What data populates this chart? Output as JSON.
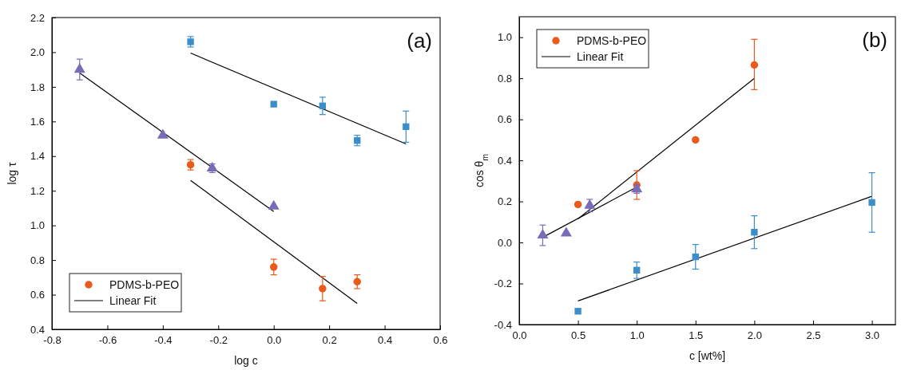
{
  "chart_data": [
    {
      "type": "scatter",
      "xlabel": "log c",
      "ylabel": "log τ",
      "annotations": [
        "(a)"
      ],
      "xlim": [
        -0.8,
        0.6
      ],
      "ylim": [
        0.4,
        2.2
      ],
      "xticks": [
        {
          "value": -0.8,
          "label": "-0.8"
        },
        {
          "value": -0.6,
          "label": "-0.6"
        },
        {
          "value": -0.4,
          "label": "-0.4"
        },
        {
          "value": -0.2,
          "label": "-0.2"
        },
        {
          "value": 0,
          "label": "0.0"
        },
        {
          "value": 0.2,
          "label": "0.2"
        },
        {
          "value": 0.4,
          "label": "0.4"
        },
        {
          "value": 0.6,
          "label": "0.6"
        }
      ],
      "yticks": [
        {
          "value": 0.4,
          "label": "0.4"
        },
        {
          "value": 0.6,
          "label": "0.6"
        },
        {
          "value": 0.8,
          "label": "0.8"
        },
        {
          "value": 1,
          "label": "1.0"
        },
        {
          "value": 1.2,
          "label": "1.2"
        },
        {
          "value": 1.4,
          "label": "1.4"
        },
        {
          "value": 1.6,
          "label": "1.6"
        },
        {
          "value": 1.8,
          "label": "1.8"
        },
        {
          "value": 2,
          "label": "2.0"
        },
        {
          "value": 2.2,
          "label": "2.2"
        }
      ],
      "legend": "bottom left",
      "series": [
        {
          "color": "#3a8fcb",
          "marker": "square",
          "x": [
            -0.3,
            0,
            0.176,
            0.301,
            0.477
          ],
          "values": [
            2.06,
            1.7,
            1.69,
            1.49,
            1.57
          ],
          "errors": [
            0.03,
            null,
            0.05,
            0.03,
            0.09
          ]
        },
        {
          "color": "#7a6bb8",
          "marker": "triangle",
          "x": [
            -0.7,
            -0.4,
            -0.222,
            0
          ],
          "values": [
            1.9,
            1.52,
            1.33,
            1.11
          ],
          "errors": [
            0.06,
            null,
            0.025,
            null
          ]
        },
        {
          "name": "PDMS-b-PEO",
          "color": "#ea5a1a",
          "marker": "circle",
          "x": [
            -0.3,
            0,
            0.176,
            0.301
          ],
          "values": [
            1.35,
            0.76,
            0.635,
            0.675
          ],
          "errors": [
            0.03,
            0.045,
            0.07,
            0.04
          ]
        },
        {
          "name": "Linear Fit",
          "type": "line",
          "color": "#000000",
          "marker": "none",
          "x": [
            -0.3,
            0.477
          ],
          "values": [
            1.995,
            1.47
          ]
        },
        {
          "type": "line",
          "color": "#000000",
          "marker": "none",
          "x": [
            -0.7,
            0
          ],
          "values": [
            1.88,
            1.08
          ]
        },
        {
          "type": "line",
          "color": "#000000",
          "marker": "none",
          "x": [
            -0.3,
            0.301
          ],
          "values": [
            1.26,
            0.55
          ]
        }
      ]
    },
    {
      "type": "scatter",
      "xlabel": "c [wt%]",
      "ylabel": "cos θ$_{m}$",
      "annotations": [
        "(b)"
      ],
      "xlim": [
        0,
        3.2
      ],
      "ylim": [
        -0.4,
        1.1
      ],
      "xticks": [
        {
          "value": 0,
          "label": "0.0"
        },
        {
          "value": 0.5,
          "label": "0.5"
        },
        {
          "value": 1,
          "label": "1.0"
        },
        {
          "value": 1.5,
          "label": "1.5"
        },
        {
          "value": 2,
          "label": "2.0"
        },
        {
          "value": 2.5,
          "label": "2.5"
        },
        {
          "value": 3,
          "label": "3.0"
        }
      ],
      "yticks": [
        {
          "value": -0.4,
          "label": "-0.4"
        },
        {
          "value": -0.2,
          "label": "-0.2"
        },
        {
          "value": 0,
          "label": "0.0"
        },
        {
          "value": 0.2,
          "label": "0.2"
        },
        {
          "value": 0.4,
          "label": "0.4"
        },
        {
          "value": 0.6,
          "label": "0.6"
        },
        {
          "value": 0.8,
          "label": "0.8"
        },
        {
          "value": 1,
          "label": "1.0"
        }
      ],
      "legend": "top left",
      "series": [
        {
          "name": "PDMS-b-PEO",
          "color": "#ea5a1a",
          "marker": "circle",
          "x": [
            0.5,
            1,
            1.5,
            2
          ],
          "values": [
            0.185,
            0.28,
            0.5,
            0.865
          ],
          "errors": [
            null,
            0.07,
            null,
            [
              0.745,
              0.99
            ]
          ]
        },
        {
          "color": "#7a6bb8",
          "marker": "triangle",
          "x": [
            0.2,
            0.4,
            0.6,
            1
          ],
          "values": [
            0.035,
            0.045,
            0.18,
            0.26
          ],
          "errors": [
            0.05,
            null,
            0.03,
            0.02
          ]
        },
        {
          "color": "#3a8fcb",
          "marker": "square",
          "x": [
            0.5,
            1,
            1.5,
            2,
            3
          ],
          "values": [
            -0.335,
            -0.135,
            -0.07,
            0.05,
            0.195
          ],
          "errors": [
            null,
            0.04,
            0.06,
            0.08,
            0.145
          ]
        },
        {
          "name": "Linear Fit",
          "type": "line",
          "color": "#000000",
          "marker": "none",
          "x": [
            0.5,
            2
          ],
          "values": [
            0.115,
            0.8
          ]
        },
        {
          "type": "line",
          "color": "#000000",
          "marker": "none",
          "x": [
            0.2,
            1
          ],
          "values": [
            0.025,
            0.27
          ]
        },
        {
          "type": "line",
          "color": "#000000",
          "marker": "none",
          "x": [
            0.5,
            3
          ],
          "values": [
            -0.285,
            0.225
          ]
        }
      ]
    }
  ]
}
